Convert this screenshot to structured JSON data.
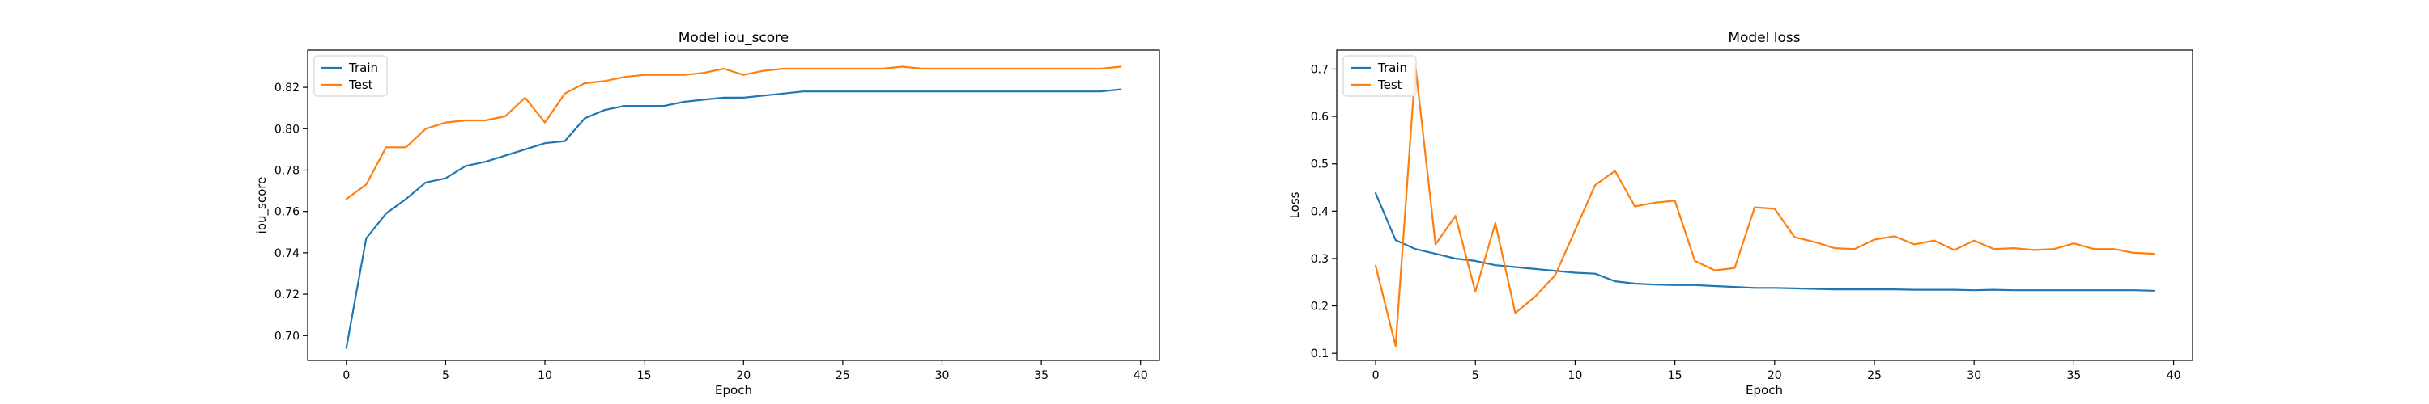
{
  "chart_data": [
    {
      "type": "line",
      "title": "Model iou_score",
      "xlabel": "Epoch",
      "ylabel": "iou_score",
      "xlim": [
        -1.95,
        40.95
      ],
      "ylim": [
        0.688,
        0.838
      ],
      "xticks": [
        0,
        5,
        10,
        15,
        20,
        25,
        30,
        35,
        40
      ],
      "yticks": [
        0.7,
        0.72,
        0.74,
        0.76,
        0.78,
        0.8,
        0.82
      ],
      "ytick_labels": [
        "0.70",
        "0.72",
        "0.74",
        "0.76",
        "0.78",
        "0.80",
        "0.82"
      ],
      "grid": false,
      "legend_position": "top-left",
      "x": [
        0,
        1,
        2,
        3,
        4,
        5,
        6,
        7,
        8,
        9,
        10,
        11,
        12,
        13,
        14,
        15,
        16,
        17,
        18,
        19,
        20,
        21,
        22,
        23,
        24,
        25,
        26,
        27,
        28,
        29,
        30,
        31,
        32,
        33,
        34,
        35,
        36,
        37,
        38,
        39
      ],
      "series": [
        {
          "name": "Train",
          "color": "#1f77b4",
          "values": [
            0.694,
            0.747,
            0.759,
            0.766,
            0.774,
            0.776,
            0.782,
            0.784,
            0.787,
            0.79,
            0.793,
            0.794,
            0.805,
            0.809,
            0.811,
            0.811,
            0.811,
            0.813,
            0.814,
            0.815,
            0.815,
            0.816,
            0.817,
            0.818,
            0.818,
            0.818,
            0.818,
            0.818,
            0.818,
            0.818,
            0.818,
            0.818,
            0.818,
            0.818,
            0.818,
            0.818,
            0.818,
            0.818,
            0.818,
            0.819
          ]
        },
        {
          "name": "Test",
          "color": "#ff7f0e",
          "values": [
            0.766,
            0.773,
            0.791,
            0.791,
            0.8,
            0.803,
            0.804,
            0.804,
            0.806,
            0.815,
            0.803,
            0.817,
            0.822,
            0.823,
            0.825,
            0.826,
            0.826,
            0.826,
            0.827,
            0.829,
            0.826,
            0.828,
            0.829,
            0.829,
            0.829,
            0.829,
            0.829,
            0.829,
            0.83,
            0.829,
            0.829,
            0.829,
            0.829,
            0.829,
            0.829,
            0.829,
            0.829,
            0.829,
            0.829,
            0.83
          ]
        }
      ]
    },
    {
      "type": "line",
      "title": "Model loss",
      "xlabel": "Epoch",
      "ylabel": "Loss",
      "xlim": [
        -1.95,
        40.95
      ],
      "ylim": [
        0.085,
        0.74
      ],
      "xticks": [
        0,
        5,
        10,
        15,
        20,
        25,
        30,
        35,
        40
      ],
      "yticks": [
        0.1,
        0.2,
        0.3,
        0.4,
        0.5,
        0.6,
        0.7
      ],
      "ytick_labels": [
        "0.1",
        "0.2",
        "0.3",
        "0.4",
        "0.5",
        "0.6",
        "0.7"
      ],
      "grid": false,
      "legend_position": "top-left",
      "x": [
        0,
        1,
        2,
        3,
        4,
        5,
        6,
        7,
        8,
        9,
        10,
        11,
        12,
        13,
        14,
        15,
        16,
        17,
        18,
        19,
        20,
        21,
        22,
        23,
        24,
        25,
        26,
        27,
        28,
        29,
        30,
        31,
        32,
        33,
        34,
        35,
        36,
        37,
        38,
        39
      ],
      "series": [
        {
          "name": "Train",
          "color": "#1f77b4",
          "values": [
            0.438,
            0.339,
            0.32,
            0.31,
            0.3,
            0.295,
            0.286,
            0.282,
            0.278,
            0.274,
            0.27,
            0.268,
            0.252,
            0.247,
            0.245,
            0.244,
            0.244,
            0.242,
            0.24,
            0.238,
            0.238,
            0.237,
            0.236,
            0.235,
            0.235,
            0.235,
            0.235,
            0.234,
            0.234,
            0.234,
            0.233,
            0.234,
            0.233,
            0.233,
            0.233,
            0.233,
            0.233,
            0.233,
            0.233,
            0.232
          ]
        },
        {
          "name": "Test",
          "color": "#ff7f0e",
          "values": [
            0.285,
            0.115,
            0.705,
            0.33,
            0.39,
            0.23,
            0.375,
            0.185,
            0.22,
            0.265,
            0.36,
            0.455,
            0.485,
            0.41,
            0.418,
            0.422,
            0.295,
            0.275,
            0.28,
            0.408,
            0.405,
            0.345,
            0.335,
            0.322,
            0.32,
            0.34,
            0.347,
            0.33,
            0.338,
            0.318,
            0.338,
            0.32,
            0.322,
            0.318,
            0.32,
            0.332,
            0.32,
            0.32,
            0.312,
            0.31
          ]
        }
      ]
    }
  ]
}
